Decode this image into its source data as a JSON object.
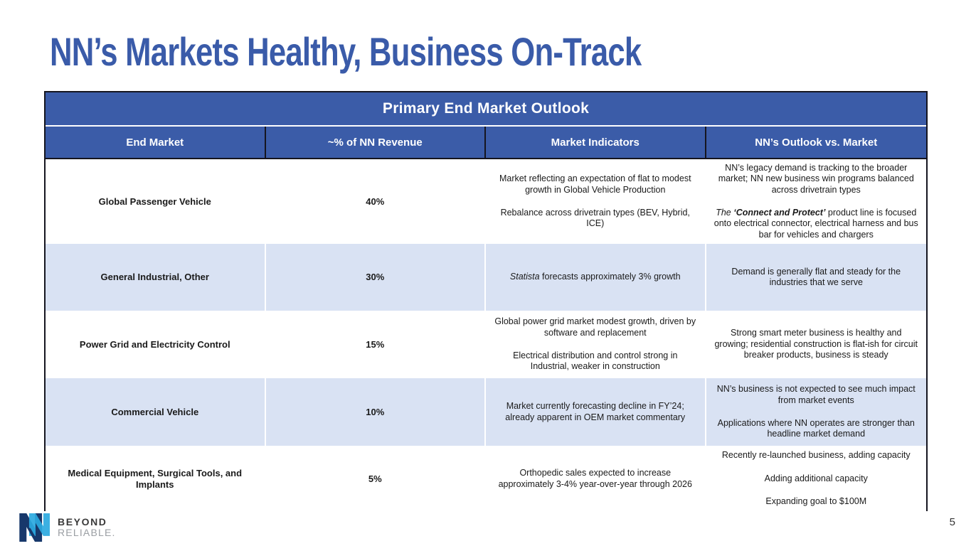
{
  "slide": {
    "title": "NN’s Markets Healthy, Business On-Track",
    "page_number": "5"
  },
  "table": {
    "title": "Primary End Market Outlook",
    "columns": [
      "End Market",
      "~% of NN Revenue",
      "Market Indicators",
      "NN’s Outlook vs. Market"
    ],
    "rows": [
      {
        "end_market": "Global Passenger Vehicle",
        "revenue": "40%",
        "indicators": [
          "Market reflecting an expectation of flat to modest growth in Global Vehicle Production",
          "Rebalance across drivetrain types (BEV, Hybrid, ICE)"
        ],
        "outlook": [
          "NN’s legacy demand is tracking to the broader market; NN new business win programs balanced across drivetrain types",
          {
            "segments": [
              {
                "t": "The ",
                "style": "i"
              },
              {
                "t": "‘Connect and Protect’",
                "style": "bi"
              },
              {
                "t": " product line is focused onto electrical connector, electrical harness and bus bar for vehicles and chargers",
                "style": ""
              }
            ]
          }
        ]
      },
      {
        "end_market": "General Industrial, Other",
        "revenue": "30%",
        "indicators": [
          {
            "segments": [
              {
                "t": "Statista",
                "style": "i"
              },
              {
                "t": " forecasts approximately 3% growth",
                "style": ""
              }
            ]
          }
        ],
        "outlook": [
          "Demand is generally flat and steady for the industries that we serve"
        ]
      },
      {
        "end_market": "Power Grid and Electricity Control",
        "revenue": "15%",
        "indicators": [
          "Global power grid market modest growth, driven by software and replacement",
          "Electrical distribution and control strong in Industrial, weaker in construction"
        ],
        "outlook": [
          "Strong smart meter business is healthy and growing; residential construction is flat-ish for circuit breaker products, business is steady"
        ]
      },
      {
        "end_market": "Commercial Vehicle",
        "revenue": "10%",
        "indicators": [
          "Market currently forecasting decline in FY’24; already apparent in OEM market commentary"
        ],
        "outlook": [
          "NN’s business is not expected to see much impact from market events",
          "Applications where NN operates are stronger than headline market demand"
        ]
      },
      {
        "end_market": "Medical Equipment, Surgical Tools, and Implants",
        "revenue": "5%",
        "indicators": [
          "Orthopedic sales expected to increase approximately 3-4% year-over-year through 2026"
        ],
        "outlook": [
          "Recently re-launched business, adding capacity",
          "Adding additional capacity",
          "Expanding goal to $100M"
        ]
      }
    ]
  },
  "footer": {
    "logo_line1": "BEYOND",
    "logo_line2": "RELIABLE.",
    "logo_navy": "#17386b",
    "logo_cyan": "#2ba9e0"
  }
}
